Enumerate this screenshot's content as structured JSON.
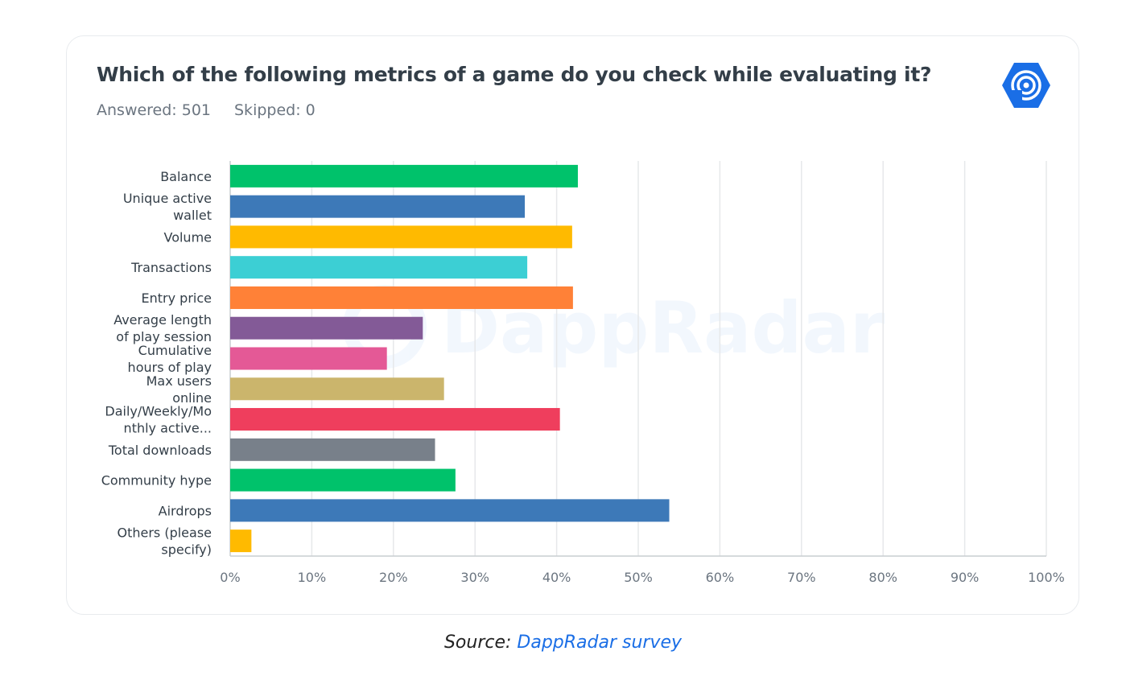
{
  "header": {
    "title": "Which of the following metrics of a game do you check while evaluating it?",
    "answered": "Answered: 501",
    "skipped": "Skipped: 0",
    "logo_icon": "dappradar-logo-icon"
  },
  "watermark": "DappRadar",
  "caption": {
    "prefix": "Source: ",
    "link_text": "DappRadar survey",
    "link_color": "#1a6ee6"
  },
  "chart_data": {
    "type": "bar",
    "orientation": "horizontal",
    "categories": [
      [
        "Balance"
      ],
      [
        "Unique active",
        "wallet"
      ],
      [
        "Volume"
      ],
      [
        "Transactions"
      ],
      [
        "Entry price"
      ],
      [
        "Average length",
        "of play session"
      ],
      [
        "Cumulative",
        "hours of play"
      ],
      [
        "Max users",
        "online"
      ],
      [
        "Daily/Weekly/Mo",
        "nthly active..."
      ],
      [
        "Total downloads"
      ],
      [
        "Community hype"
      ],
      [
        "Airdrops"
      ],
      [
        "Others (please",
        "specify)"
      ]
    ],
    "values": [
      42.6,
      36.1,
      41.9,
      36.4,
      42.0,
      23.6,
      19.2,
      26.2,
      40.4,
      25.1,
      27.6,
      53.8,
      2.6
    ],
    "colors": [
      "#00c26b",
      "#3d79b8",
      "#ffba00",
      "#3ccfd4",
      "#ff8137",
      "#835a97",
      "#e45996",
      "#cbb56c",
      "#ef3e5d",
      "#78808a",
      "#00c26b",
      "#3d79b8",
      "#ffba00"
    ],
    "xticks": [
      "0%",
      "10%",
      "20%",
      "30%",
      "40%",
      "50%",
      "60%",
      "70%",
      "80%",
      "90%",
      "100%"
    ],
    "xlim": [
      0,
      100
    ],
    "grid": true
  }
}
